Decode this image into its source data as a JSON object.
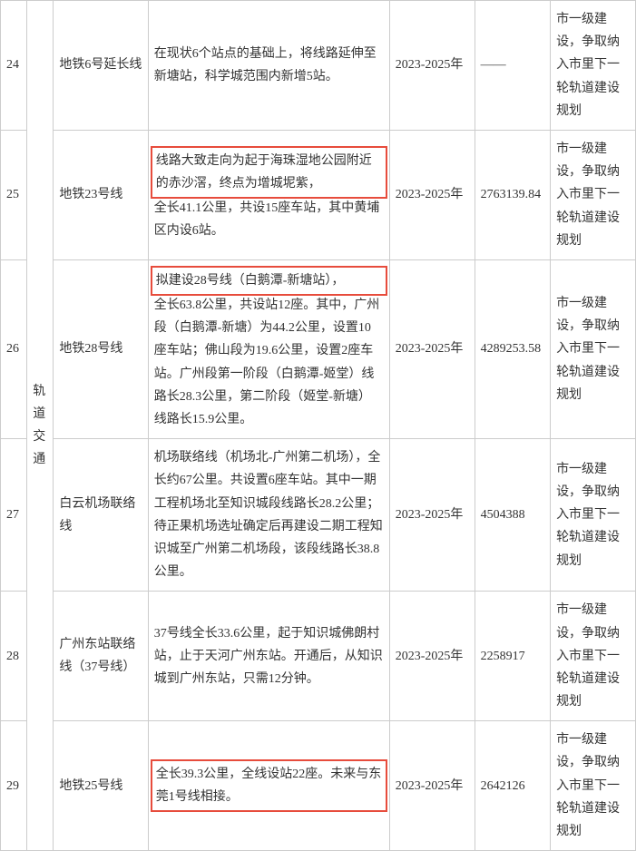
{
  "category": "轨道交通",
  "status_text": "市一级建设，争取纳入市里下一轮轨道建设规划",
  "rows": [
    {
      "idx": "24",
      "name": "地铁6号延长线",
      "desc": "在现状6个站点的基础上，将线路延伸至新塘站，科学城范围内新增5站。",
      "year": "2023-2025年",
      "num": "——",
      "highlight": false
    },
    {
      "idx": "25",
      "name": "地铁23号线",
      "desc_hl": "线路大致走向为起于海珠湿地公园附近的赤沙滘，终点为增城坭紫，",
      "desc_rest": "全长41.1公里，共设15座车站，其中黄埔区内设6站。",
      "year": "2023-2025年",
      "num": "2763139.84",
      "highlight": true
    },
    {
      "idx": "26",
      "name": "地铁28号线",
      "desc_hl": "拟建设28号线（白鹅潭-新塘站），",
      "desc_rest": "全长63.8公里，共设站12座。其中，广州段（白鹅潭-新塘）为44.2公里，设置10座车站；佛山段为19.6公里，设置2座车站。广州段第一阶段（白鹅潭-姬堂）线路长28.3公里，第二阶段（姬堂-新塘）线路长15.9公里。",
      "year": "2023-2025年",
      "num": "4289253.58",
      "highlight": true
    },
    {
      "idx": "27",
      "name": "白云机场联络线",
      "desc": "机场联络线（机场北-广州第二机场），全长约67公里。共设置6座车站。其中一期工程机场北至知识城段线路长28.2公里；待正果机场选址确定后再建设二期工程知识城至广州第二机场段，该段线路长38.8公里。",
      "year": "2023-2025年",
      "num": "4504388",
      "highlight": false
    },
    {
      "idx": "28",
      "name": "广州东站联络线（37号线）",
      "desc": "37号线全长33.6公里，起于知识城佛朗村站，止于天河广州东站。开通后，从知识城到广州东站，只需12分钟。",
      "year": "2023-2025年",
      "num": "2258917",
      "highlight": false
    },
    {
      "idx": "29",
      "name": "地铁25号线",
      "desc_hl": "全长39.3公里，全线设站22座。未来与东莞1号线相接。",
      "desc_rest": "",
      "year": "2023-2025年",
      "num": "2642126",
      "highlight": true
    }
  ]
}
